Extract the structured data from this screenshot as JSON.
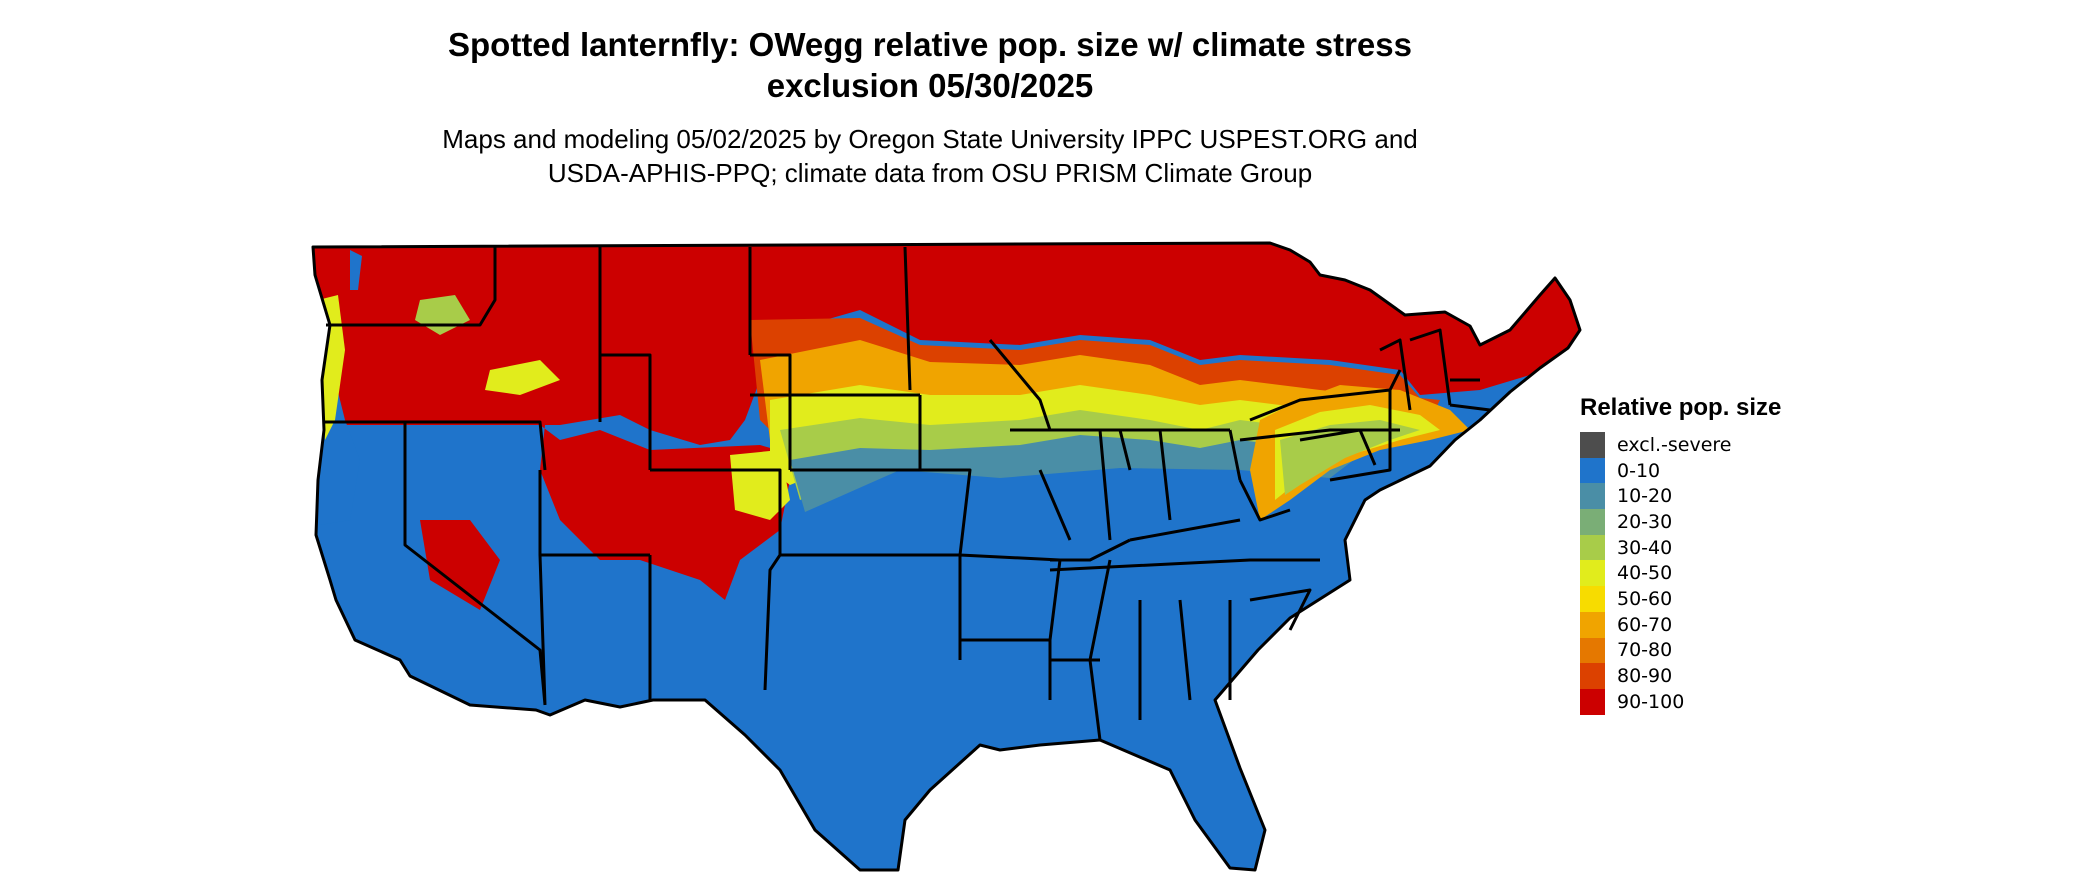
{
  "title_line1": "Spotted lanternfly: OWegg relative pop. size w/ climate stress",
  "title_line2": "exclusion 05/30/2025",
  "subtitle_line1": "Maps and modeling 05/02/2025 by Oregon State University IPPC USPEST.ORG and",
  "subtitle_line2": "USDA-APHIS-PPQ; climate data from OSU PRISM Climate Group",
  "legend": {
    "title": "Relative pop. size",
    "items": [
      {
        "label": "excl.-severe",
        "color": "#4d4d4d"
      },
      {
        "label": "0-10",
        "color": "#1f74cb"
      },
      {
        "label": "10-20",
        "color": "#4a8ea6"
      },
      {
        "label": "20-30",
        "color": "#7aae76"
      },
      {
        "label": "30-40",
        "color": "#a8cc49"
      },
      {
        "label": "40-50",
        "color": "#e1ec1c"
      },
      {
        "label": "50-60",
        "color": "#f7dc00"
      },
      {
        "label": "60-70",
        "color": "#f0a400"
      },
      {
        "label": "70-80",
        "color": "#e57800"
      },
      {
        "label": "80-90",
        "color": "#dc4100"
      },
      {
        "label": "90-100",
        "color": "#cc0000"
      }
    ]
  },
  "map": {
    "region": "Conterminous United States",
    "state_boundaries": true
  }
}
